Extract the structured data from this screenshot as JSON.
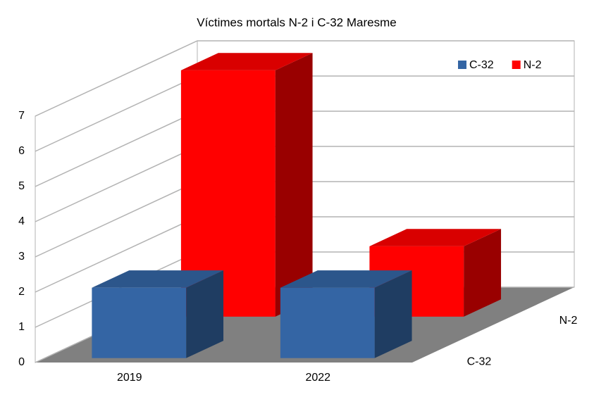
{
  "chart_data": {
    "type": "bar3d",
    "title": "Víctimes mortals N-2 i C-32 Maresme",
    "categories": [
      "2019",
      "2022"
    ],
    "series": [
      {
        "name": "C-32",
        "color": "#3465a4",
        "values": [
          2,
          2
        ]
      },
      {
        "name": "N-2",
        "color": "#ff0000",
        "values": [
          7,
          2
        ]
      }
    ],
    "ylim": [
      0,
      7
    ],
    "yticks": [
      0,
      1,
      2,
      3,
      4,
      5,
      6,
      7
    ],
    "grid": true
  }
}
